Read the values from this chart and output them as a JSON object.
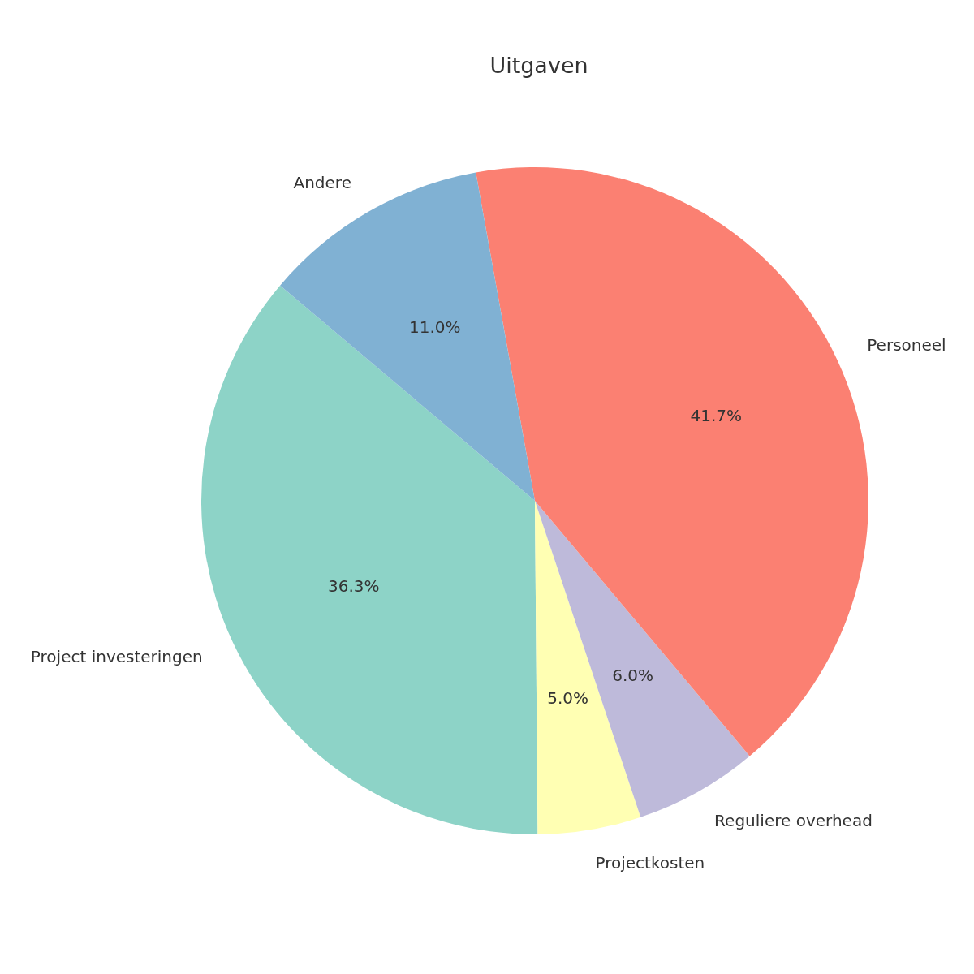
{
  "chart_data": {
    "type": "pie",
    "title": "Uitgaven",
    "categories": [
      "Project investeringen",
      "Projectkosten",
      "Reguliere overhead",
      "Personeel",
      "Andere"
    ],
    "values": [
      36.3,
      5.0,
      6.0,
      41.7,
      11.0
    ],
    "value_labels": [
      "36.3%",
      "5.0%",
      "6.0%",
      "41.7%",
      "11.0%"
    ],
    "colors": [
      "#8dd3c7",
      "#ffffb3",
      "#bebada",
      "#fb8072",
      "#80b1d3"
    ]
  }
}
